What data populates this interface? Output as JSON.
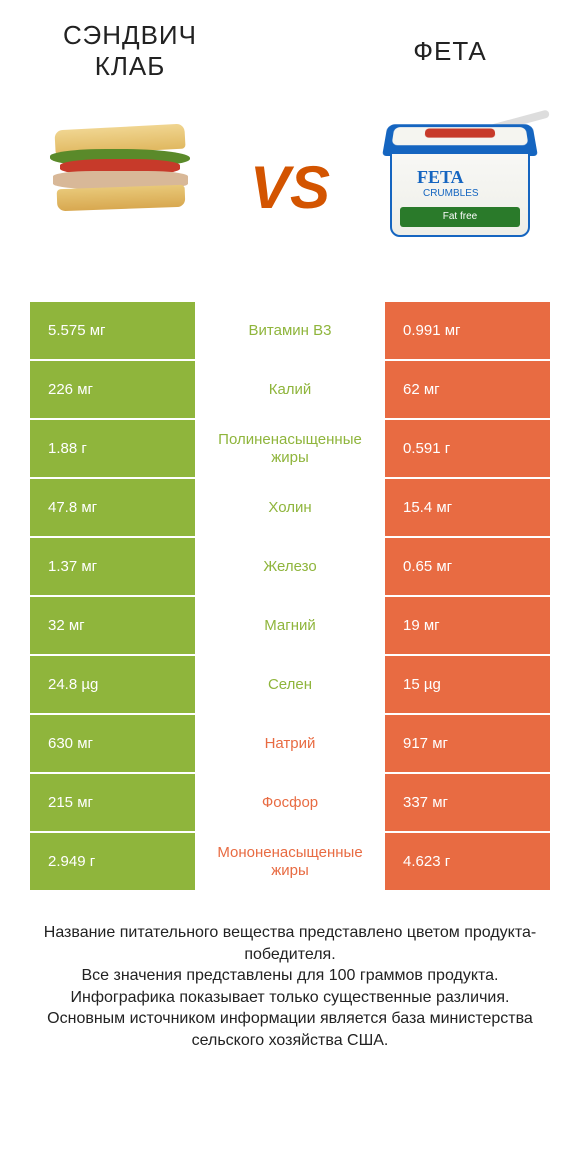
{
  "colors": {
    "left_bg": "#8fb53c",
    "right_bg": "#e86b42",
    "mid_left_text": "#8fb53c",
    "mid_right_text": "#e86b42"
  },
  "header": {
    "left_title": "СЭНДВИЧ КЛАБ",
    "right_title": "ФЕТА",
    "vs": "VS"
  },
  "feta_illustration": {
    "label": "FETA",
    "sublabel": "CRUMBLES",
    "green": "Fat free"
  },
  "rows": [
    {
      "left": "5.575 мг",
      "name": "Витамин B3",
      "right": "0.991 мг",
      "winner": "left"
    },
    {
      "left": "226 мг",
      "name": "Калий",
      "right": "62 мг",
      "winner": "left"
    },
    {
      "left": "1.88 г",
      "name": "Полиненасыщенные жиры",
      "right": "0.591 г",
      "winner": "left"
    },
    {
      "left": "47.8 мг",
      "name": "Холин",
      "right": "15.4 мг",
      "winner": "left"
    },
    {
      "left": "1.37 мг",
      "name": "Железо",
      "right": "0.65 мг",
      "winner": "left"
    },
    {
      "left": "32 мг",
      "name": "Магний",
      "right": "19 мг",
      "winner": "left"
    },
    {
      "left": "24.8 µg",
      "name": "Селен",
      "right": "15 µg",
      "winner": "left"
    },
    {
      "left": "630 мг",
      "name": "Натрий",
      "right": "917 мг",
      "winner": "right"
    },
    {
      "left": "215 мг",
      "name": "Фосфор",
      "right": "337 мг",
      "winner": "right"
    },
    {
      "left": "2.949 г",
      "name": "Мононенасыщенные жиры",
      "right": "4.623 г",
      "winner": "right"
    }
  ],
  "footer": {
    "line1": "Название питательного вещества представлено цветом продукта-победителя.",
    "line2": "Все значения представлены для 100 граммов продукта.",
    "line3": "Инфографика показывает только существенные различия.",
    "line4": "Основным источником информации является база министерства сельского хозяйства США."
  }
}
